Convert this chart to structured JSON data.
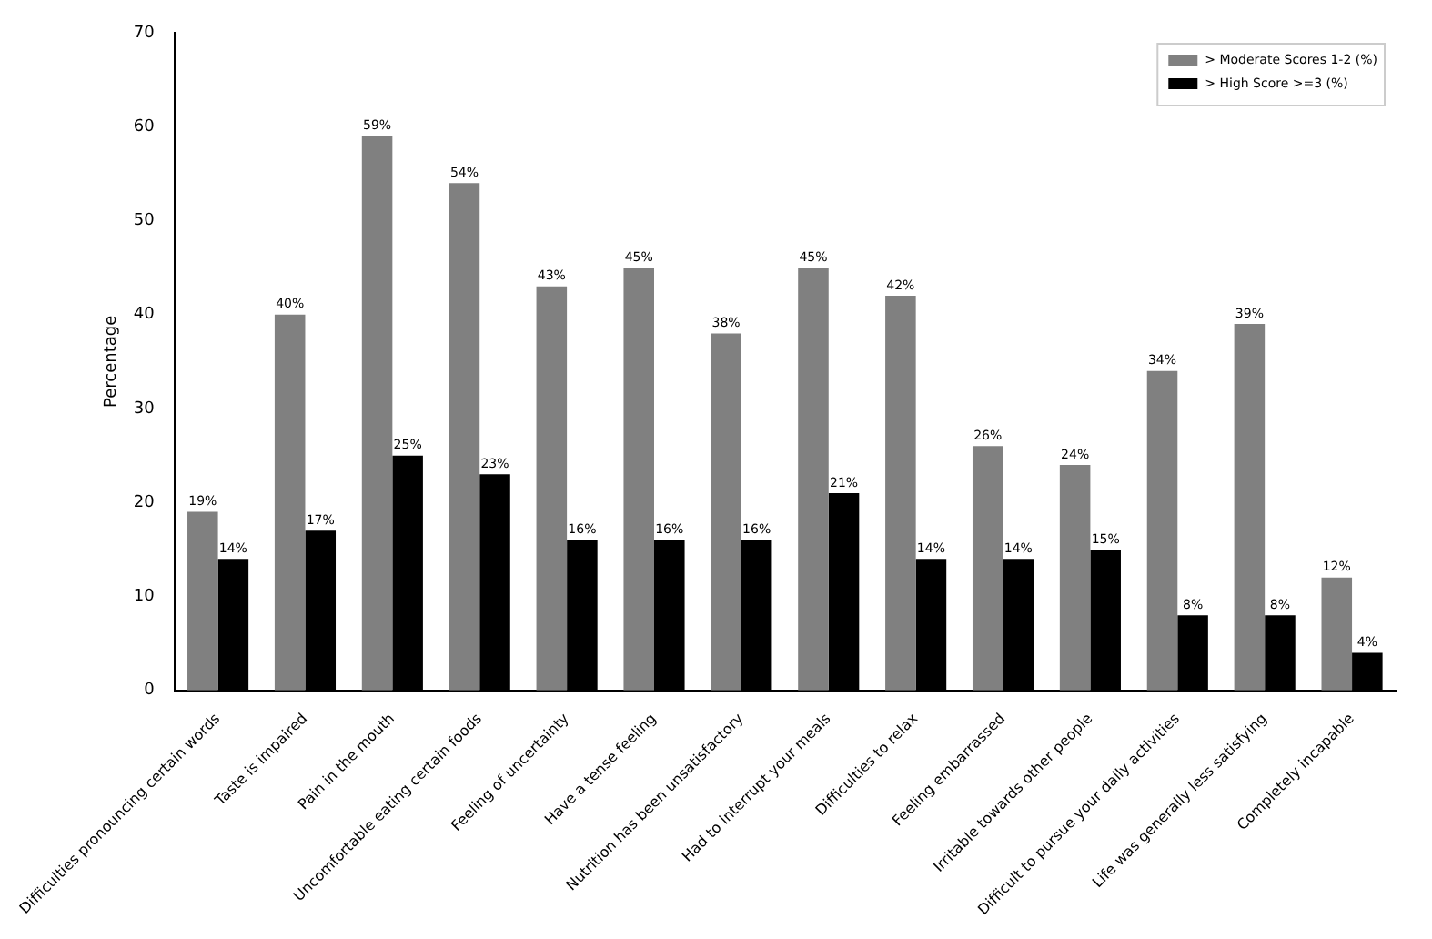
{
  "chart_data": {
    "type": "bar",
    "ylabel": "Percentage",
    "categories": [
      "Difficulties pronouncing certain words",
      "Taste is impaired",
      "Pain in the mouth",
      "Uncomfortable eating certain foods",
      "Feeling of uncertainty",
      "Have a tense feeling",
      "Nutrition has been unsatisfactory",
      "Had to interrupt your meals",
      "Difficulties to relax",
      "Feeling embarrassed",
      "Irritable towards other people",
      "Difficult to pursue your daily activities",
      "Life was generally less satisfying",
      "Completely incapable"
    ],
    "series": [
      {
        "name": "> Moderate Scores 1-2 (%)",
        "color": "#808080",
        "values": [
          19,
          40,
          59,
          54,
          43,
          45,
          38,
          45,
          42,
          26,
          24,
          34,
          39,
          12
        ],
        "value_labels": [
          "19%",
          "40%",
          "59%",
          "54%",
          "43%",
          "45%",
          "38%",
          "45%",
          "42%",
          "26%",
          "24%",
          "34%",
          "39%",
          "12%"
        ]
      },
      {
        "name": "> High Score >=3 (%)",
        "color": "#000000",
        "values": [
          14,
          17,
          25,
          23,
          16,
          16,
          16,
          21,
          14,
          14,
          15,
          8,
          8,
          4
        ],
        "value_labels": [
          "14%",
          "17%",
          "25%",
          "23%",
          "16%",
          "16%",
          "16%",
          "21%",
          "14%",
          "14%",
          "15%",
          "8%",
          "8%",
          "4%"
        ]
      }
    ],
    "ylim": [
      0,
      70
    ],
    "yticks": [
      0,
      10,
      20,
      30,
      40,
      50,
      60,
      70
    ],
    "grid": false,
    "legend": "top right"
  }
}
